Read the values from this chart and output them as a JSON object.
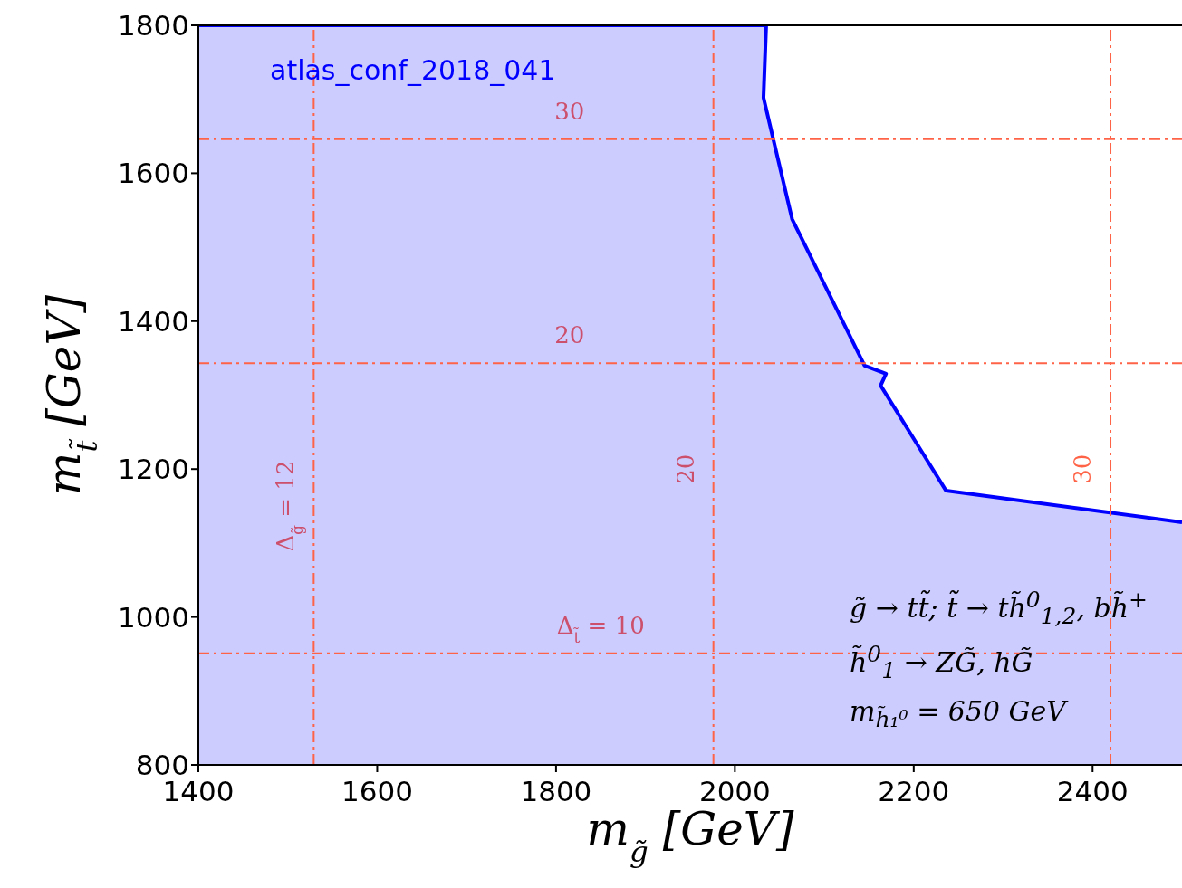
{
  "chart_data": {
    "type": "area",
    "xlabel": "m$_{g̃}$ [GeV]",
    "ylabel": "m$_{t̃}$ [GeV]",
    "series": [
      {
        "color": "#0000ff",
        "x": [
          1400,
          2035,
          2032,
          2064,
          2145,
          2169,
          2163,
          2236,
          2500
        ],
        "values": [
          1800,
          1800,
          1702,
          1538,
          1340,
          1329,
          1313,
          1171,
          1128
        ]
      }
    ],
    "xlim": [
      1400,
      2500
    ],
    "xticks": [
      1400,
      1600,
      1800,
      2000,
      2200,
      2400
    ],
    "ylim": [
      800,
      1800
    ],
    "yticks": [
      800,
      1000,
      1200,
      1400,
      1600,
      1800
    ],
    "ref_lines": [
      {
        "axis": "x",
        "value": 1529,
        "color": "#ff6347",
        "line_style": "dashdot"
      },
      {
        "axis": "x",
        "value": 1976,
        "color": "#ff6347",
        "line_style": "dashdot"
      },
      {
        "axis": "x",
        "value": 2420,
        "color": "#ff6347",
        "line_style": "dashdot"
      },
      {
        "axis": "y",
        "value": 951,
        "color": "#ff6347",
        "line_style": "dashdot"
      },
      {
        "axis": "y",
        "value": 1343,
        "color": "#ff6347",
        "line_style": "dashdot"
      },
      {
        "axis": "y",
        "value": 1646,
        "color": "#ff6347",
        "line_style": "dashdot"
      }
    ],
    "annotations": [
      "atlas_conf_2018_041",
      "g̃ → tt̃; t̃ → th̃$^{0}$$_{1,2}$, bh̃$^{+}$",
      "h̃$^{0}$$_{1}$ → ZG̃, hG̃",
      "m$_{h̃₁⁰}$ = 650 GeV",
      {
        "text": "Δ$_{g̃}$ = 12",
        "x": 1529,
        "y": 1150
      },
      {
        "text": "20",
        "x": 1976,
        "y": 1200
      },
      {
        "text": "30",
        "x": 2420,
        "y": 1200
      },
      {
        "text": "Δ$_{t̃}$ = 10",
        "x": 1850,
        "y": 951
      },
      {
        "text": "20",
        "x": 1815,
        "y": 1343
      },
      {
        "text": "30",
        "x": 1815,
        "y": 1646
      }
    ]
  }
}
